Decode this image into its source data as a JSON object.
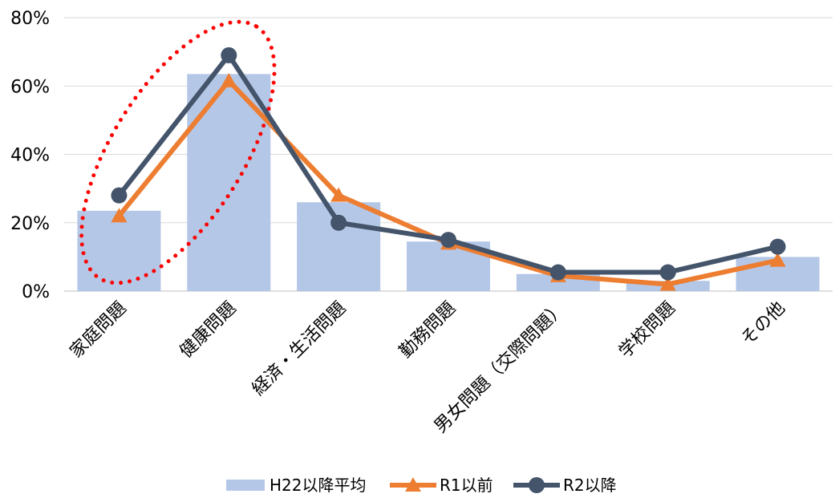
{
  "chart_data": {
    "type": "bar",
    "categories": [
      "家庭問題",
      "健康問題",
      "経済・生活問題",
      "勤務問題",
      "男女問題（交際問題）",
      "学校問題",
      "その他"
    ],
    "series": [
      {
        "name": "H22以降平均",
        "type": "bar",
        "color": "#b4c7e7",
        "values": [
          23.5,
          63.5,
          26,
          14.5,
          5,
          3,
          10
        ]
      },
      {
        "name": "R1以前",
        "type": "line",
        "marker": "triangle",
        "color": "#ed7d31",
        "values": [
          22,
          61.5,
          28,
          14,
          4.5,
          2,
          9
        ]
      },
      {
        "name": "R2以降",
        "type": "line",
        "marker": "circle",
        "color": "#44546a",
        "values": [
          28,
          69,
          20,
          15,
          5.5,
          5.5,
          13
        ]
      }
    ],
    "ylim": [
      0,
      80
    ],
    "yticks": [
      "0%",
      "20%",
      "40%",
      "60%",
      "80%"
    ],
    "xlabel": "",
    "ylabel": "",
    "grid": true,
    "legend": "bottom",
    "annotation": {
      "shape": "dotted-ellipse",
      "color": "#ff0000",
      "categories": [
        "家庭問題",
        "健康問題"
      ]
    }
  }
}
